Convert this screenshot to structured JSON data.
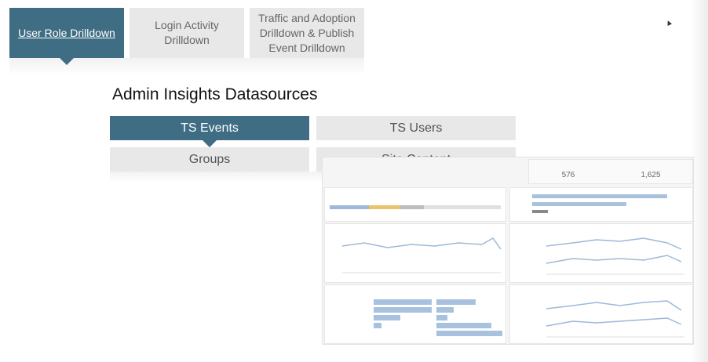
{
  "top_tabs": [
    {
      "label": "User Role Drilldown",
      "active": true
    },
    {
      "label": "Login Activity Drilldown",
      "active": false
    },
    {
      "label": "Traffic and Adoption Drilldown & Publish Event Drilldown",
      "active": false
    }
  ],
  "section": {
    "title": "Admin Insights Datasources"
  },
  "datasources": [
    {
      "label": "TS Events",
      "active": true
    },
    {
      "label": "TS Users",
      "active": false
    },
    {
      "label": "Groups",
      "active": false
    },
    {
      "label": "Site Content",
      "active": false
    }
  ],
  "dashboard": {
    "kpis": [
      "576",
      "1,625"
    ]
  },
  "colors": {
    "accent": "#3f6d84",
    "inactive": "#e8e8e8",
    "chart_blue": "#9db9d8",
    "chart_yellow": "#e9c46a"
  }
}
